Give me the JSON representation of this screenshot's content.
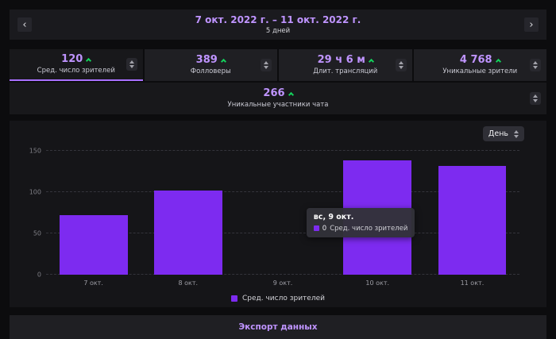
{
  "header": {
    "prev": "‹",
    "next": "›",
    "date_range": "7 окт. 2022 г. – 11 окт. 2022 г.",
    "subtitle": "5 дней"
  },
  "stats": {
    "cards": [
      {
        "value": "120",
        "label": "Сред. число зрителей",
        "trend": "up",
        "selected": true
      },
      {
        "value": "389",
        "label": "Фолловеры",
        "trend": "up",
        "selected": false
      },
      {
        "value": "29 ч 6 м",
        "label": "Длит. трансляций",
        "trend": "up",
        "selected": false
      },
      {
        "value": "4 768",
        "label": "Уникальные зрители",
        "trend": "up",
        "selected": false
      }
    ],
    "wide_card": {
      "value": "266",
      "label": "Уникальные участники чата",
      "trend": "up"
    }
  },
  "chart": {
    "interval_label": "День",
    "legend_label": "Сред. число зрителей",
    "tooltip": {
      "title": "вс, 9 окт.",
      "value": "0",
      "label": "Сред. число зрителей"
    }
  },
  "chart_data": {
    "type": "bar",
    "categories": [
      "7 окт.",
      "8 окт.",
      "9 окт.",
      "10 окт.",
      "11 окт."
    ],
    "values": [
      72,
      102,
      0,
      138,
      132
    ],
    "series_name": "Сред. число зрителей",
    "title": "",
    "xlabel": "",
    "ylabel": "",
    "ylim": [
      0,
      150
    ],
    "yticks": [
      0,
      50,
      100,
      150
    ],
    "grid": true,
    "legend_position": "bottom",
    "bar_color": "#7d2bf0"
  },
  "footer": {
    "export_label": "Экспорт данных"
  },
  "colors": {
    "accent_purple": "#bf94ff",
    "positive_green": "#13d15c",
    "bar_purple": "#7d2bf0",
    "panel_bg": "#1f1f23",
    "page_bg": "#0c0c0e"
  }
}
